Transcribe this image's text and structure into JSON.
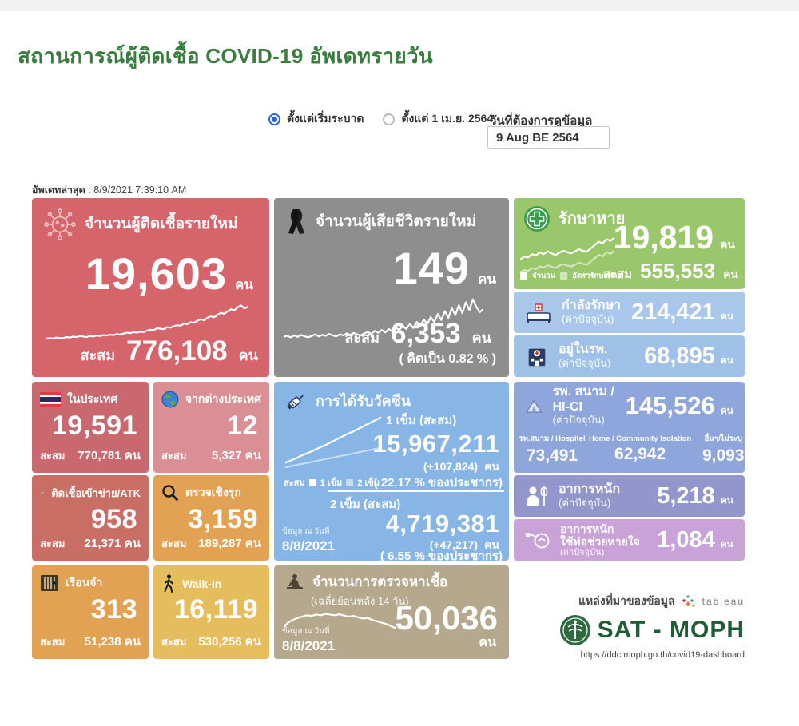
{
  "page": {
    "title": "สถานการณ์ผู้ติดเชื้อ COVID-19 อัพเดทรายวัน",
    "last_update_label": "อัพเดทล่าสุด",
    "last_update_value": ": 8/9/2021 7:39:10 AM"
  },
  "controls": {
    "radio_since_start": "ตั้งแต่เริ่มระบาด",
    "radio_since_april": "ตั้งแต่ 1 เม.ย. 2564",
    "date_label": "วันที่ต้องการดูข้อมูล",
    "date_value": "9 Aug BE 2564"
  },
  "colors": {
    "new_cases": "#d5646b",
    "deaths": "#8e8e8e",
    "recovered": "#9ac76b",
    "in_treatment": "#a9c7eb",
    "in_hospital": "#9fc0e7",
    "field_hospital": "#8ea6db",
    "severe": "#9296cd",
    "ventilator": "#c9a3d8",
    "domestic": "#c9696f",
    "abroad": "#d98f94",
    "vaccine": "#86b5e6",
    "atk": "#c96e64",
    "proactive": "#e2a254",
    "prison": "#e2a254",
    "walkin": "#e5bd5c",
    "tests": "#b5a88c",
    "accent_blue": "#2567d9",
    "brand_green": "#1f5c38"
  },
  "cards": {
    "new_cases": {
      "title": "จำนวนผู้ติดเชื้อรายใหม่",
      "value": "19,603",
      "unit": "คน",
      "cumulative_label": "สะสม",
      "cumulative": "776,108",
      "cumulative_unit": "คน",
      "spark": [
        13,
        14,
        13,
        15,
        14,
        14,
        16,
        15,
        17,
        16,
        18,
        17,
        16,
        18,
        17,
        19,
        18,
        20,
        19,
        21,
        20,
        22,
        21,
        23,
        25,
        24,
        26,
        25,
        27,
        26,
        29,
        31,
        30,
        34,
        33,
        32,
        36,
        35,
        38,
        40,
        39,
        43,
        42,
        46,
        45,
        49,
        52,
        50,
        55,
        58,
        56,
        61,
        65,
        63,
        68,
        72,
        70,
        76,
        80,
        74,
        77
      ]
    },
    "deaths": {
      "title": "จำนวนผู้เสียชีวิตรายใหม่",
      "value": "149",
      "unit": "คน",
      "cumulative_label": "สะสม",
      "cumulative": "6,353",
      "cumulative_unit": "คน",
      "percent_note": "( คิดเป็น   0.82  % )",
      "spark": [
        10,
        12,
        9,
        13,
        10,
        14,
        11,
        9,
        12,
        15,
        11,
        14,
        12,
        16,
        13,
        11,
        15,
        13,
        17,
        14,
        18,
        15,
        13,
        17,
        20,
        16,
        22,
        18,
        24,
        19,
        26,
        21,
        28,
        24,
        32,
        26,
        36,
        28,
        40,
        32,
        45,
        36,
        50,
        40,
        56,
        44,
        62,
        48,
        68,
        54,
        74,
        58,
        80,
        64,
        86,
        70,
        60,
        66
      ]
    },
    "recovered": {
      "title": "รักษาหาย",
      "value": "19,819",
      "unit": "คน",
      "legend1": "จำนวน",
      "legend2": "อัตรารักษาหาย",
      "cumulative_label": "สะสม",
      "cumulative": "555,553",
      "cumulative_unit": "คน",
      "spark": [
        25,
        32,
        30,
        38,
        35,
        42,
        38,
        45,
        40,
        36,
        42,
        46,
        43,
        40,
        45,
        50,
        46,
        44,
        52,
        60,
        68,
        64,
        74,
        70,
        78
      ],
      "spark2": [
        10,
        15,
        13,
        20,
        17,
        24,
        21,
        27,
        23,
        20,
        26,
        29,
        26,
        24,
        28,
        33,
        30,
        28,
        36,
        44,
        52,
        48,
        58,
        54,
        62
      ]
    },
    "in_treatment": {
      "title": "กำลังรักษา",
      "subtitle": "(ค่าปัจจุบัน)",
      "value": "214,421",
      "unit": "คน"
    },
    "in_hospital": {
      "title": "อยู่ในรพ.",
      "subtitle": "(ค่าปัจจุบัน)",
      "value": "68,895",
      "unit": "คน"
    },
    "field_hospital": {
      "title": "รพ. สนาม / HI-CI",
      "subtitle": "(ค่าปัจจุบัน)",
      "value": "145,526",
      "unit": "คน",
      "sub": [
        {
          "label": "รพ.สนาม / Hospitel",
          "value": "73,491"
        },
        {
          "label": "Home / Community Isolation",
          "value": "62,942"
        },
        {
          "label": "อื่นๆ/ไม่ระบุ",
          "value": "9,093"
        }
      ]
    },
    "severe": {
      "title": "อาการหนัก",
      "subtitle": "(ค่าปัจจุบัน)",
      "value": "5,218",
      "unit": "คน"
    },
    "ventilator": {
      "title": "อาการหนัก",
      "title2": "ใช้ท่อช่วยหายใจ",
      "subtitle": "(ค่าปัจจุบัน)",
      "value": "1,084",
      "unit": "คน"
    },
    "domestic": {
      "title": "ในประเทศ",
      "value": "19,591",
      "cumulative_label": "สะสม",
      "cumulative": "770,781 คน"
    },
    "abroad": {
      "title": "จากต่างประเทศ",
      "value": "12",
      "cumulative_label": "สะสม",
      "cumulative": "5,327 คน"
    },
    "vaccine": {
      "title": "การได้รับวัคซีน",
      "dose1_label": "1 เข็ม (สะสม)",
      "dose1_value": "15,967,211",
      "dose1_delta": "(+107,824)",
      "dose1_unit": "คน",
      "dose1_percent": "( 22.17 % ของประชากร)",
      "dose2_label": "2 เข็ม (สะสม)",
      "dose2_value": "4,719,381",
      "dose2_delta": "(+47,217)",
      "dose2_unit": "คน",
      "dose2_percent": "(  6.55 % ของประชากร)",
      "legend_label": "สะสม",
      "legend1": "1 เข็ม",
      "legend2": "2 เข็ม",
      "asof_label": "ข้อมูล ณ วันที่",
      "asof_value": "8/8/2021",
      "spark": [
        12,
        16,
        20,
        25,
        29,
        33,
        38,
        42,
        47,
        52,
        57,
        62,
        66,
        71,
        76,
        81,
        86,
        91
      ],
      "spark2": [
        4,
        6,
        8,
        10,
        12,
        14,
        16,
        18,
        20,
        22,
        24,
        26,
        28,
        30,
        32,
        34,
        36,
        38
      ]
    },
    "atk": {
      "title": "ติดเชื้อเข้าข่าย/ATK",
      "value": "958",
      "cumulative_label": "สะสม",
      "cumulative": "21,371 คน"
    },
    "proactive": {
      "title": "ตรวจเชิงรุก",
      "value": "3,159",
      "cumulative_label": "สะสม",
      "cumulative": "189,287 คน"
    },
    "prison": {
      "title": "เรือนจำ",
      "value": "313",
      "cumulative_label": "สะสม",
      "cumulative": "51,238 คน"
    },
    "walkin": {
      "title": "Walk-in",
      "value": "16,119",
      "cumulative_label": "สะสม",
      "cumulative": "530,256 คน"
    },
    "tests": {
      "title": "จำนวนการตรวจหาเชื้อ",
      "subtitle": "(เฉลี่ยย้อนหลัง 14 วัน)",
      "value": "50,036",
      "unit": "คน",
      "asof_label": "ข้อมูล ณ วันที่",
      "asof_value": "8/8/2021",
      "spark": [
        30,
        45,
        52,
        58,
        62,
        66,
        64,
        68,
        66,
        70,
        68,
        66,
        69,
        65,
        62,
        64,
        60,
        56,
        58,
        52,
        48,
        44,
        40,
        34,
        28
      ]
    }
  },
  "source": {
    "label": "แหล่งที่มาของข้อมูล",
    "tableau_label": "tableau",
    "brand": "SAT - MOPH",
    "url": "https://ddc.moph.go.th/covid19-dashboard"
  }
}
